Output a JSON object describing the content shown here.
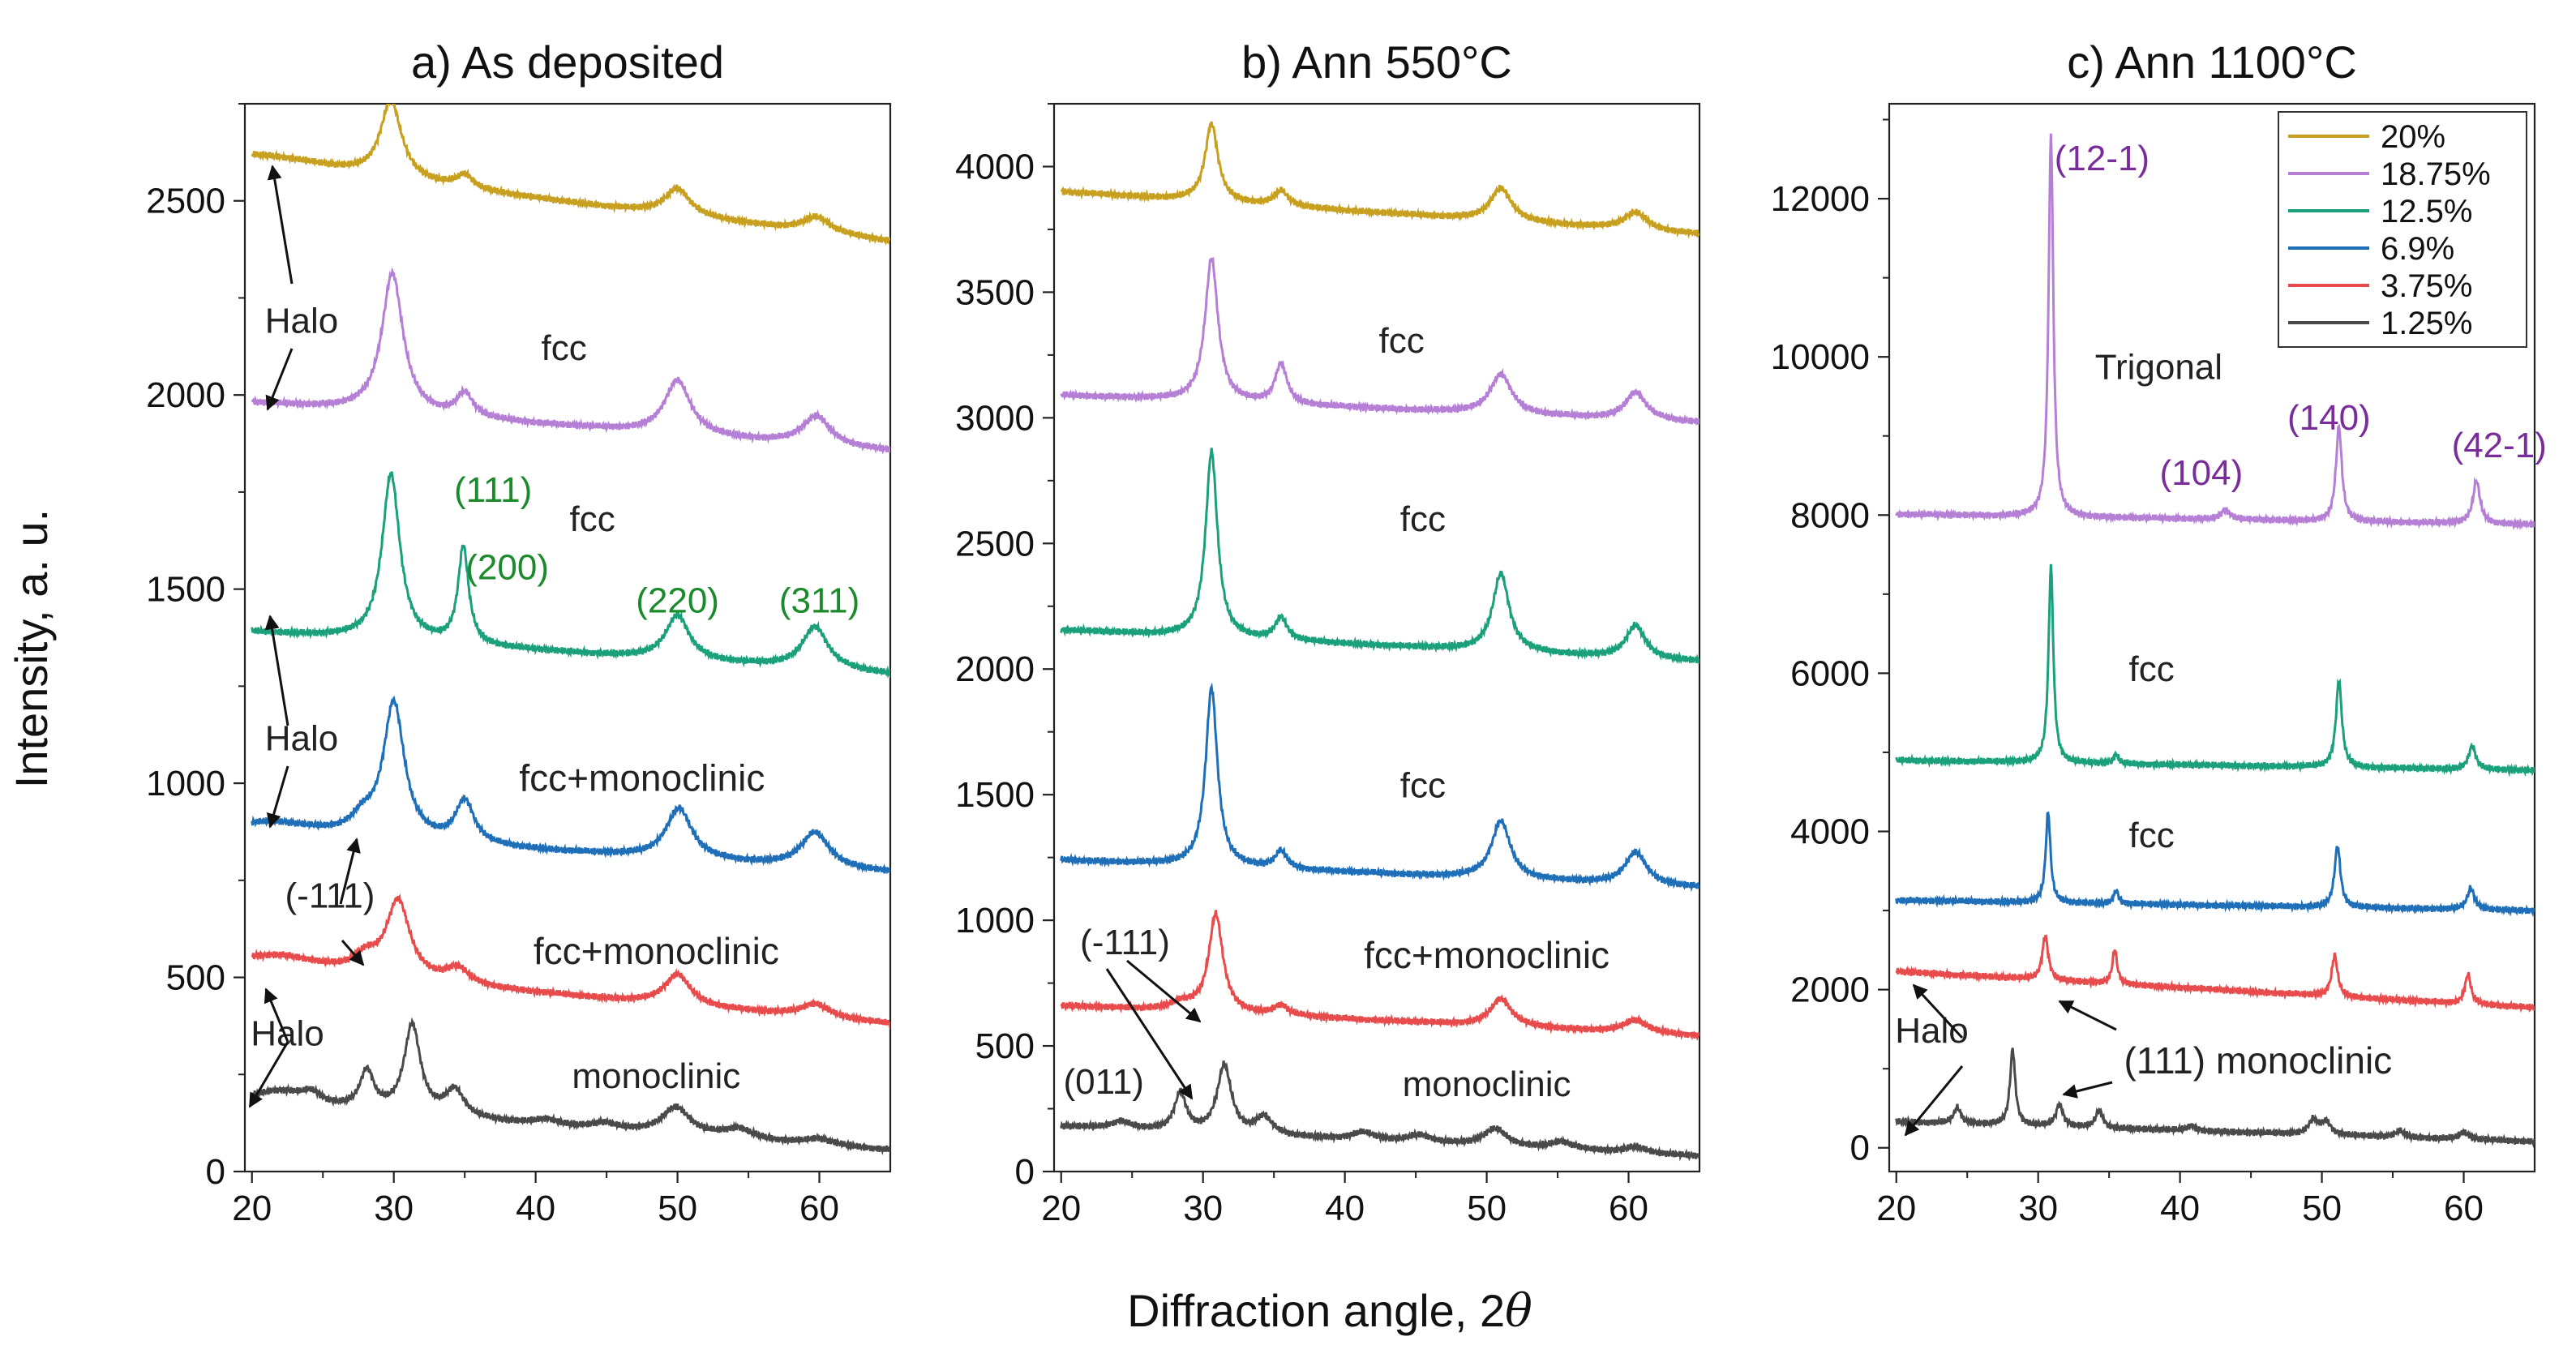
{
  "figure": {
    "ylabel": "Intensity, a. u.",
    "xlabel": "Diffraction angle, 2",
    "xlabel_symbol": "θ"
  },
  "legend": {
    "entries": [
      {
        "label": "20%",
        "color": "#c8a020"
      },
      {
        "label": "18.75%",
        "color": "#b57fd6"
      },
      {
        "label": "12.5%",
        "color": "#1aa07a"
      },
      {
        "label": "6.9%",
        "color": "#1f6fb8"
      },
      {
        "label": "3.75%",
        "color": "#e84b4b"
      },
      {
        "label": "1.25%",
        "color": "#4a4a4a"
      }
    ]
  },
  "chart_data": [
    {
      "type": "line",
      "title": "a) As deposited",
      "xlim": [
        19.5,
        65
      ],
      "ylim": [
        0,
        2750
      ],
      "xticks": [
        20,
        30,
        40,
        50,
        60
      ],
      "yticks": [
        0,
        500,
        1000,
        1500,
        2000,
        2500
      ],
      "series": [
        {
          "name": "20%",
          "color": "#c8a020",
          "baseline": [
            2590,
            2395
          ],
          "peaks": [
            [
              21.5,
              30,
              6
            ],
            [
              29.8,
              200,
              0.9
            ],
            [
              35,
              35,
              0.7
            ],
            [
              50,
              70,
              1.1
            ],
            [
              59.8,
              40,
              1.2
            ]
          ]
        },
        {
          "name": "18.75%",
          "color": "#b57fd6",
          "baseline": [
            1980,
            1855
          ],
          "peaks": [
            [
              29.9,
              360,
              0.9
            ],
            [
              35,
              60,
              0.7
            ],
            [
              50,
              140,
              1.1
            ],
            [
              59.8,
              75,
              1.2
            ]
          ]
        },
        {
          "name": "12.5%",
          "color": "#1aa07a",
          "baseline": [
            1390,
            1280
          ],
          "peaks": [
            [
              29.8,
              430,
              0.75
            ],
            [
              34.9,
              250,
              0.45
            ],
            [
              50,
              115,
              1.0
            ],
            [
              59.7,
              110,
              1.1
            ]
          ]
        },
        {
          "name": "6.9%",
          "color": "#1f6fb8",
          "baseline": [
            870,
            770
          ],
          "peaks": [
            [
              21.5,
              30,
              4
            ],
            [
              27.8,
              40,
              1.0
            ],
            [
              30,
              350,
              0.9
            ],
            [
              35,
              110,
              0.8
            ],
            [
              50.1,
              130,
              1.1
            ],
            [
              59.7,
              90,
              1.2
            ]
          ]
        },
        {
          "name": "3.75%",
          "color": "#e84b4b",
          "baseline": [
            520,
            380
          ],
          "peaks": [
            [
              22,
              40,
              4
            ],
            [
              28,
              40,
              1.0
            ],
            [
              30.3,
              200,
              1.0
            ],
            [
              34.5,
              40,
              1.0
            ],
            [
              50,
              80,
              1.1
            ],
            [
              59.7,
              35,
              1.2
            ]
          ]
        },
        {
          "name": "1.25%",
          "color": "#4a4a4a",
          "baseline": [
            170,
            55
          ],
          "peaks": [
            [
              22,
              40,
              2.5
            ],
            [
              24.2,
              25,
              0.8
            ],
            [
              28.1,
              100,
              0.6
            ],
            [
              31.3,
              230,
              0.7
            ],
            [
              34.3,
              70,
              0.8
            ],
            [
              40.8,
              15,
              1.0
            ],
            [
              44.8,
              15,
              1.0
            ],
            [
              49.9,
              70,
              1.2
            ],
            [
              54.3,
              25,
              1.2
            ],
            [
              60,
              15,
              1.2
            ]
          ]
        }
      ],
      "annotations": [
        {
          "text": "Halo",
          "x": 23.5,
          "y": 2160,
          "color": "#222222"
        },
        {
          "text": "fcc",
          "x": 42,
          "y": 2090,
          "color": "#222222"
        },
        {
          "text": "fcc",
          "x": 44,
          "y": 1650,
          "color": "#222222"
        },
        {
          "text": "(111)",
          "x": 37,
          "y": 1725,
          "color": "#1a8a2a"
        },
        {
          "text": "(200)",
          "x": 38,
          "y": 1525,
          "color": "#1a8a2a"
        },
        {
          "text": "(220)",
          "x": 50,
          "y": 1440,
          "color": "#1a8a2a"
        },
        {
          "text": "(311)",
          "x": 60,
          "y": 1440,
          "color": "#1a8a2a"
        },
        {
          "text": "Halo",
          "x": 23.5,
          "y": 1085,
          "color": "#222222"
        },
        {
          "text": "fcc+monoclinic",
          "x": 47.5,
          "y": 980,
          "color": "#222222"
        },
        {
          "text": "(-111)",
          "x": 25.5,
          "y": 680,
          "color": "#222222"
        },
        {
          "text": "fcc+monoclinic",
          "x": 48.5,
          "y": 535,
          "color": "#222222"
        },
        {
          "text": "Halo",
          "x": 22.5,
          "y": 325,
          "color": "#222222"
        },
        {
          "text": "monoclinic",
          "x": 48.5,
          "y": 215,
          "color": "#222222"
        }
      ]
    },
    {
      "type": "line",
      "title": "b) Ann 550°C",
      "xlim": [
        19.5,
        65
      ],
      "ylim": [
        0,
        4250
      ],
      "xticks": [
        20,
        30,
        40,
        50,
        60
      ],
      "yticks": [
        0,
        500,
        1000,
        1500,
        2000,
        2500,
        3000,
        3500,
        4000
      ],
      "series": [
        {
          "name": "20%",
          "color": "#c8a020",
          "baseline": [
            3900,
            3730
          ],
          "peaks": [
            [
              30.6,
              310,
              0.55
            ],
            [
              35.5,
              60,
              0.6
            ],
            [
              51,
              130,
              0.9
            ],
            [
              60.5,
              70,
              1.0
            ]
          ]
        },
        {
          "name": "18.75%",
          "color": "#b57fd6",
          "baseline": [
            3090,
            2980
          ],
          "peaks": [
            [
              30.6,
              570,
              0.55
            ],
            [
              35.5,
              160,
              0.5
            ],
            [
              51,
              160,
              0.9
            ],
            [
              60.5,
              110,
              0.9
            ]
          ]
        },
        {
          "name": "12.5%",
          "color": "#1aa07a",
          "baseline": [
            2155,
            2030
          ],
          "peaks": [
            [
              30.6,
              740,
              0.5
            ],
            [
              35.5,
              90,
              0.5
            ],
            [
              51,
              310,
              0.7
            ],
            [
              60.5,
              130,
              0.8
            ]
          ]
        },
        {
          "name": "6.9%",
          "color": "#1f6fb8",
          "baseline": [
            1240,
            1130
          ],
          "peaks": [
            [
              30.6,
              710,
              0.5
            ],
            [
              35.5,
              70,
              0.5
            ],
            [
              51,
              230,
              0.8
            ],
            [
              60.5,
              130,
              0.9
            ]
          ]
        },
        {
          "name": "3.75%",
          "color": "#e84b4b",
          "baseline": [
            660,
            540
          ],
          "peaks": [
            [
              28.5,
              30,
              1.0
            ],
            [
              30.9,
              390,
              0.6
            ],
            [
              35.5,
              40,
              0.6
            ],
            [
              51,
              110,
              0.9
            ],
            [
              60.5,
              50,
              1.0
            ]
          ]
        },
        {
          "name": "1.25%",
          "color": "#4a4a4a",
          "baseline": [
            180,
            60
          ],
          "peaks": [
            [
              24.2,
              30,
              0.8
            ],
            [
              28.4,
              150,
              0.5
            ],
            [
              31.5,
              270,
              0.6
            ],
            [
              34.3,
              70,
              0.7
            ],
            [
              41.3,
              30,
              1.0
            ],
            [
              45.3,
              30,
              1.0
            ],
            [
              50.6,
              70,
              1.0
            ],
            [
              55.3,
              30,
              1.0
            ],
            [
              60.5,
              25,
              1.0
            ]
          ]
        }
      ],
      "annotations": [
        {
          "text": "fcc",
          "x": 44,
          "y": 3260,
          "color": "#222222"
        },
        {
          "text": "fcc",
          "x": 45.5,
          "y": 2550,
          "color": "#222222"
        },
        {
          "text": "fcc",
          "x": 45.5,
          "y": 1490,
          "color": "#222222"
        },
        {
          "text": "(-111)",
          "x": 24.5,
          "y": 865,
          "color": "#222222"
        },
        {
          "text": "fcc+monoclinic",
          "x": 50,
          "y": 810,
          "color": "#222222"
        },
        {
          "text": "(011)",
          "x": 23,
          "y": 310,
          "color": "#222222"
        },
        {
          "text": "monoclinic",
          "x": 50,
          "y": 300,
          "color": "#222222"
        }
      ]
    },
    {
      "type": "line",
      "title": "c) Ann 1100°C",
      "xlim": [
        19.5,
        65
      ],
      "ylim": [
        -300,
        13200
      ],
      "xticks": [
        20,
        30,
        40,
        50,
        60
      ],
      "yticks": [
        0,
        2000,
        4000,
        6000,
        8000,
        10000,
        12000
      ],
      "series": [
        {
          "name": "20%",
          "color": "#c8a020",
          "baseline": [
            null,
            null
          ],
          "peaks": []
        },
        {
          "name": "18.75%",
          "color": "#b57fd6",
          "baseline": [
            8010,
            7880
          ],
          "peaks": [
            [
              30.9,
              4850,
              0.2
            ],
            [
              43.2,
              120,
              0.4
            ],
            [
              51.2,
              1200,
              0.25
            ],
            [
              60.9,
              540,
              0.3
            ]
          ]
        },
        {
          "name": "12.5%",
          "color": "#1aa07a",
          "baseline": [
            4900,
            4770
          ],
          "peaks": [
            [
              30.9,
              2500,
              0.2
            ],
            [
              35.5,
              120,
              0.2
            ],
            [
              51.2,
              1100,
              0.25
            ],
            [
              60.6,
              300,
              0.3
            ]
          ]
        },
        {
          "name": "6.9%",
          "color": "#1f6fb8",
          "baseline": [
            3130,
            3000
          ],
          "peaks": [
            [
              30.7,
              1150,
              0.2
            ],
            [
              35.5,
              170,
              0.2
            ],
            [
              51.1,
              780,
              0.25
            ],
            [
              60.5,
              270,
              0.3
            ]
          ]
        },
        {
          "name": "3.75%",
          "color": "#e84b4b",
          "baseline": [
            2230,
            1770
          ],
          "peaks": [
            [
              30.5,
              560,
              0.25
            ],
            [
              35.4,
              430,
              0.2
            ],
            [
              50.9,
              520,
              0.25
            ],
            [
              60.3,
              380,
              0.25
            ]
          ]
        },
        {
          "name": "1.25%",
          "color": "#4a4a4a",
          "baseline": [
            330,
            80
          ],
          "peaks": [
            [
              24.3,
              200,
              0.3
            ],
            [
              28.2,
              960,
              0.22
            ],
            [
              31.5,
              280,
              0.3
            ],
            [
              34.3,
              220,
              0.3
            ],
            [
              40.8,
              60,
              0.4
            ],
            [
              49.4,
              180,
              0.4
            ],
            [
              50.3,
              160,
              0.4
            ],
            [
              55.5,
              80,
              0.4
            ],
            [
              60,
              90,
              0.4
            ]
          ]
        }
      ],
      "annotations": [
        {
          "text": "(12-1)",
          "x": 34.5,
          "y": 12360,
          "color": "#7a2d9a"
        },
        {
          "text": "Trigonal",
          "x": 38.5,
          "y": 9720,
          "color": "#222222"
        },
        {
          "text": "(140)",
          "x": 50.5,
          "y": 9080,
          "color": "#7a2d9a"
        },
        {
          "text": "(104)",
          "x": 41.5,
          "y": 8380,
          "color": "#7a2d9a"
        },
        {
          "text": "(42-1)",
          "x": 62.5,
          "y": 8730,
          "color": "#7a2d9a"
        },
        {
          "text": "fcc",
          "x": 38,
          "y": 5900,
          "color": "#222222"
        },
        {
          "text": "fcc",
          "x": 38,
          "y": 3800,
          "color": "#222222"
        },
        {
          "text": "Halo",
          "x": 22.5,
          "y": 1330,
          "color": "#222222"
        },
        {
          "text": "(111) monoclinic",
          "x": 45.5,
          "y": 940,
          "color": "#222222"
        }
      ]
    }
  ]
}
